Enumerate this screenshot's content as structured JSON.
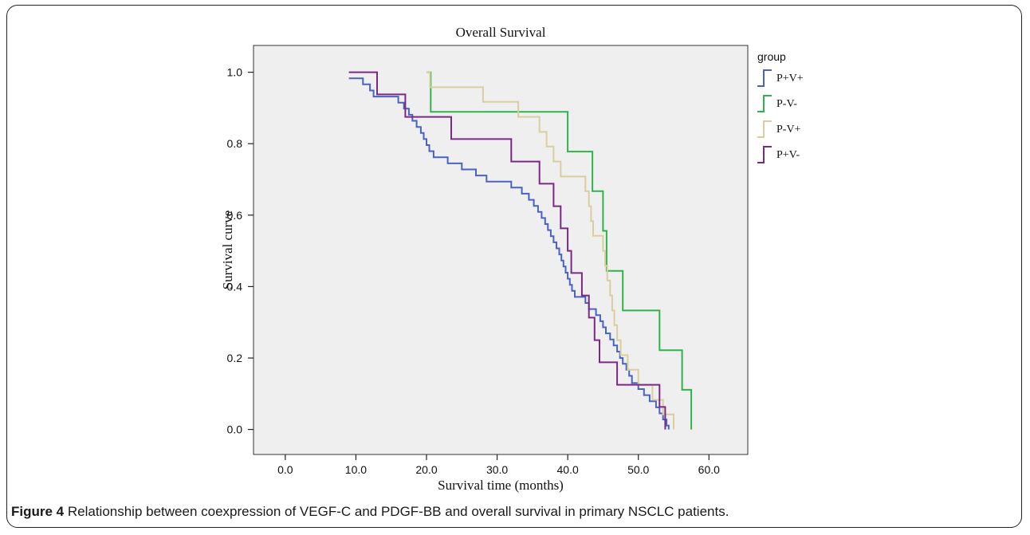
{
  "caption": {
    "label": "Figure 4",
    "text": "Relationship between coexpression of VEGF-C and PDGF-BB and overall survival in primary NSCLC patients."
  },
  "chart_data": {
    "type": "line",
    "step": true,
    "title": "Overall Survival",
    "xlabel": "Survival time (months)",
    "ylabel": "Survival curve",
    "xlim": [
      -4.5,
      65.5
    ],
    "ylim": [
      -0.07,
      1.075
    ],
    "xticks": [
      0,
      10,
      20,
      30,
      40,
      50,
      60
    ],
    "xtick_labels": [
      "0.0",
      "10.0",
      "20.0",
      "30.0",
      "40.0",
      "50.0",
      "60.0"
    ],
    "yticks": [
      0,
      0.2,
      0.4,
      0.6,
      0.8,
      1.0
    ],
    "ytick_labels": [
      "0.0",
      "0.2",
      "0.4",
      "0.6",
      "0.8",
      "1.0"
    ],
    "plot_background": "#efefef",
    "legend_title": "group",
    "legend_position": "right",
    "series": [
      {
        "name": "P+V+",
        "color": "#4a63c2",
        "points": [
          [
            9,
            0.983
          ],
          [
            11,
            0.983
          ],
          [
            11,
            0.966
          ],
          [
            12,
            0.966
          ],
          [
            12,
            0.949
          ],
          [
            12.5,
            0.949
          ],
          [
            12.5,
            0.932
          ],
          [
            16,
            0.932
          ],
          [
            16,
            0.915
          ],
          [
            16.8,
            0.915
          ],
          [
            16.8,
            0.898
          ],
          [
            17.5,
            0.898
          ],
          [
            17.5,
            0.881
          ],
          [
            18,
            0.881
          ],
          [
            18,
            0.864
          ],
          [
            18.6,
            0.864
          ],
          [
            18.6,
            0.847
          ],
          [
            19.2,
            0.847
          ],
          [
            19.2,
            0.83
          ],
          [
            19.6,
            0.83
          ],
          [
            19.6,
            0.813
          ],
          [
            20,
            0.813
          ],
          [
            20,
            0.796
          ],
          [
            20.4,
            0.796
          ],
          [
            20.4,
            0.779
          ],
          [
            21,
            0.779
          ],
          [
            21,
            0.762
          ],
          [
            23,
            0.762
          ],
          [
            23,
            0.745
          ],
          [
            25,
            0.745
          ],
          [
            25,
            0.728
          ],
          [
            27,
            0.728
          ],
          [
            27,
            0.711
          ],
          [
            28.5,
            0.711
          ],
          [
            28.5,
            0.694
          ],
          [
            32,
            0.694
          ],
          [
            32,
            0.677
          ],
          [
            33.5,
            0.677
          ],
          [
            33.5,
            0.66
          ],
          [
            34.5,
            0.66
          ],
          [
            34.5,
            0.643
          ],
          [
            35.2,
            0.643
          ],
          [
            35.2,
            0.626
          ],
          [
            35.8,
            0.626
          ],
          [
            35.8,
            0.609
          ],
          [
            36.3,
            0.609
          ],
          [
            36.3,
            0.592
          ],
          [
            36.8,
            0.592
          ],
          [
            36.8,
            0.575
          ],
          [
            37.2,
            0.575
          ],
          [
            37.2,
            0.558
          ],
          [
            37.6,
            0.558
          ],
          [
            37.6,
            0.541
          ],
          [
            38,
            0.541
          ],
          [
            38,
            0.524
          ],
          [
            38.4,
            0.524
          ],
          [
            38.4,
            0.507
          ],
          [
            38.8,
            0.507
          ],
          [
            38.8,
            0.49
          ],
          [
            39.1,
            0.49
          ],
          [
            39.1,
            0.473
          ],
          [
            39.4,
            0.473
          ],
          [
            39.4,
            0.456
          ],
          [
            39.7,
            0.456
          ],
          [
            39.7,
            0.439
          ],
          [
            40,
            0.439
          ],
          [
            40,
            0.422
          ],
          [
            40.3,
            0.422
          ],
          [
            40.3,
            0.405
          ],
          [
            40.6,
            0.405
          ],
          [
            40.6,
            0.388
          ],
          [
            41,
            0.388
          ],
          [
            41,
            0.371
          ],
          [
            42.5,
            0.371
          ],
          [
            42.5,
            0.354
          ],
          [
            43,
            0.354
          ],
          [
            43,
            0.337
          ],
          [
            44,
            0.337
          ],
          [
            44,
            0.32
          ],
          [
            44.6,
            0.32
          ],
          [
            44.6,
            0.303
          ],
          [
            45,
            0.303
          ],
          [
            45,
            0.286
          ],
          [
            45.4,
            0.286
          ],
          [
            45.4,
            0.269
          ],
          [
            46,
            0.269
          ],
          [
            46,
            0.252
          ],
          [
            46.5,
            0.252
          ],
          [
            46.5,
            0.235
          ],
          [
            47,
            0.235
          ],
          [
            47,
            0.218
          ],
          [
            47.4,
            0.218
          ],
          [
            47.4,
            0.2
          ],
          [
            47.8,
            0.2
          ],
          [
            47.8,
            0.184
          ],
          [
            48.3,
            0.184
          ],
          [
            48.3,
            0.167
          ],
          [
            48.7,
            0.167
          ],
          [
            48.7,
            0.15
          ],
          [
            49.1,
            0.15
          ],
          [
            49.1,
            0.13
          ],
          [
            50,
            0.13
          ],
          [
            50,
            0.113
          ],
          [
            50.8,
            0.113
          ],
          [
            50.8,
            0.096
          ],
          [
            51.6,
            0.096
          ],
          [
            51.6,
            0.079
          ],
          [
            52.5,
            0.079
          ],
          [
            52.5,
            0.062
          ],
          [
            53,
            0.062
          ],
          [
            53,
            0.045
          ],
          [
            53.5,
            0.045
          ],
          [
            53.5,
            0.028
          ],
          [
            54,
            0.028
          ],
          [
            54,
            0.011
          ],
          [
            54.3,
            0.011
          ],
          [
            54.3,
            0
          ]
        ]
      },
      {
        "name": "P-V-",
        "color": "#2fb34a",
        "points": [
          [
            20,
            1.0
          ],
          [
            20.6,
            1.0
          ],
          [
            20.6,
            0.889
          ],
          [
            40,
            0.889
          ],
          [
            40,
            0.778
          ],
          [
            43.5,
            0.778
          ],
          [
            43.5,
            0.667
          ],
          [
            45,
            0.667
          ],
          [
            45,
            0.556
          ],
          [
            45.5,
            0.556
          ],
          [
            45.5,
            0.444
          ],
          [
            47.8,
            0.444
          ],
          [
            47.8,
            0.333
          ],
          [
            53,
            0.333
          ],
          [
            53,
            0.222
          ],
          [
            56.2,
            0.222
          ],
          [
            56.2,
            0.111
          ],
          [
            57.5,
            0.111
          ],
          [
            57.5,
            0
          ]
        ]
      },
      {
        "name": "P-V+",
        "color": "#d9cf9e",
        "points": [
          [
            20,
            1.0
          ],
          [
            20.5,
            1.0
          ],
          [
            20.5,
            0.958
          ],
          [
            28,
            0.958
          ],
          [
            28,
            0.917
          ],
          [
            33,
            0.917
          ],
          [
            33,
            0.875
          ],
          [
            36,
            0.875
          ],
          [
            36,
            0.833
          ],
          [
            37,
            0.833
          ],
          [
            37,
            0.792
          ],
          [
            38,
            0.792
          ],
          [
            38,
            0.75
          ],
          [
            39,
            0.75
          ],
          [
            39,
            0.708
          ],
          [
            42.5,
            0.708
          ],
          [
            42.5,
            0.667
          ],
          [
            43,
            0.667
          ],
          [
            43,
            0.625
          ],
          [
            43.3,
            0.625
          ],
          [
            43.3,
            0.583
          ],
          [
            43.6,
            0.583
          ],
          [
            43.6,
            0.542
          ],
          [
            45,
            0.542
          ],
          [
            45,
            0.5
          ],
          [
            45.3,
            0.5
          ],
          [
            45.3,
            0.458
          ],
          [
            45.6,
            0.458
          ],
          [
            45.6,
            0.417
          ],
          [
            46,
            0.417
          ],
          [
            46,
            0.375
          ],
          [
            46.3,
            0.375
          ],
          [
            46.3,
            0.333
          ],
          [
            46.6,
            0.333
          ],
          [
            46.6,
            0.292
          ],
          [
            47,
            0.292
          ],
          [
            47,
            0.25
          ],
          [
            47.5,
            0.25
          ],
          [
            47.5,
            0.208
          ],
          [
            48.5,
            0.208
          ],
          [
            48.5,
            0.167
          ],
          [
            50,
            0.167
          ],
          [
            50,
            0.125
          ],
          [
            52,
            0.125
          ],
          [
            52,
            0.083
          ],
          [
            53.5,
            0.083
          ],
          [
            53.5,
            0.042
          ],
          [
            55,
            0.042
          ],
          [
            55,
            0
          ]
        ]
      },
      {
        "name": "P+V-",
        "color": "#7a2a86",
        "points": [
          [
            9,
            1.0
          ],
          [
            13,
            1.0
          ],
          [
            13,
            0.938
          ],
          [
            17,
            0.938
          ],
          [
            17,
            0.875
          ],
          [
            23.5,
            0.875
          ],
          [
            23.5,
            0.813
          ],
          [
            32,
            0.813
          ],
          [
            32,
            0.75
          ],
          [
            36,
            0.75
          ],
          [
            36,
            0.688
          ],
          [
            38,
            0.688
          ],
          [
            38,
            0.625
          ],
          [
            39,
            0.625
          ],
          [
            39,
            0.563
          ],
          [
            40,
            0.563
          ],
          [
            40,
            0.5
          ],
          [
            40.5,
            0.5
          ],
          [
            40.5,
            0.438
          ],
          [
            42,
            0.438
          ],
          [
            42,
            0.375
          ],
          [
            43,
            0.375
          ],
          [
            43,
            0.313
          ],
          [
            43.8,
            0.313
          ],
          [
            43.8,
            0.25
          ],
          [
            44.5,
            0.25
          ],
          [
            44.5,
            0.188
          ],
          [
            47,
            0.188
          ],
          [
            47,
            0.125
          ],
          [
            53,
            0.125
          ],
          [
            53,
            0.063
          ],
          [
            53.8,
            0.063
          ],
          [
            53.8,
            0
          ]
        ]
      }
    ]
  }
}
